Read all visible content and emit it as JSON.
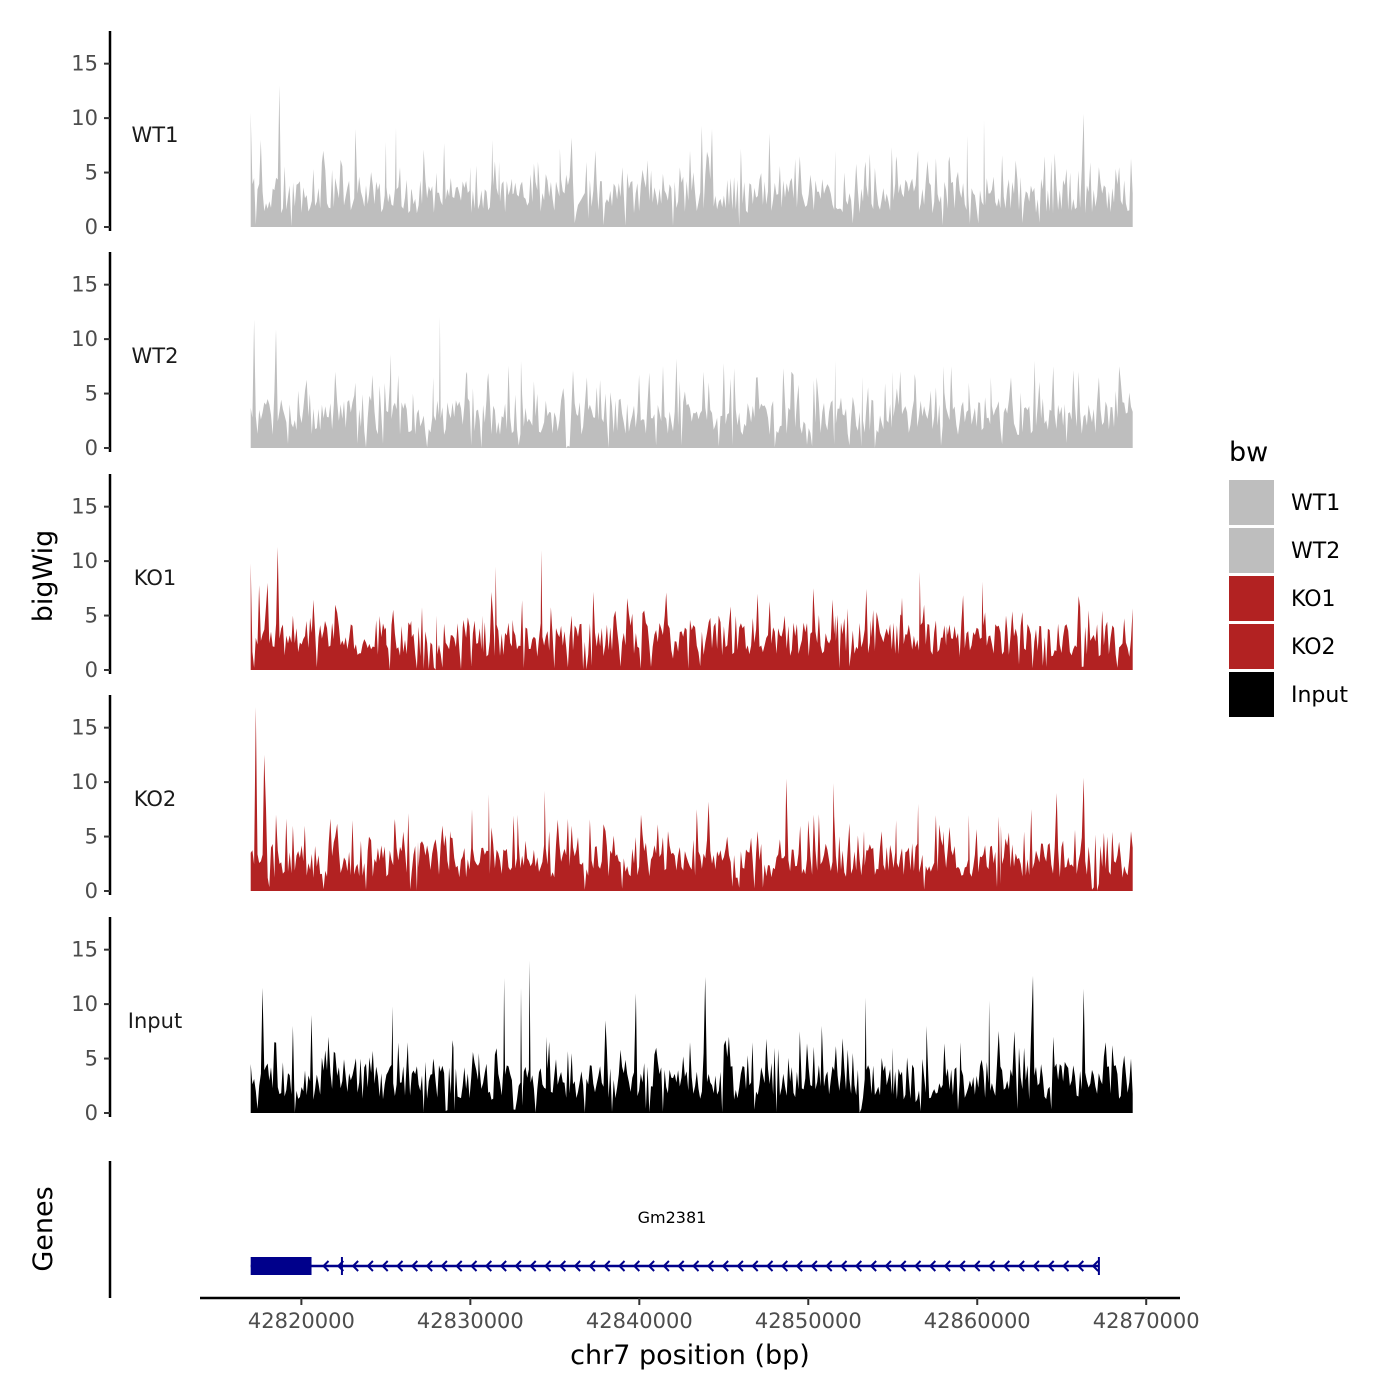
{
  "chart_data": {
    "type": "area",
    "x_axis": {
      "label": "chr7 position (bp)",
      "range": [
        42814000,
        42872000
      ],
      "ticks": [
        42820000,
        42830000,
        42840000,
        42850000,
        42860000,
        42870000
      ],
      "tick_labels": [
        "42820000",
        "42830000",
        "42840000",
        "42850000",
        "42860000",
        "42870000"
      ]
    },
    "y_axis": {
      "label": "bigWig",
      "range": [
        0,
        18
      ],
      "ticks": [
        0,
        5,
        10,
        15
      ],
      "tick_labels": [
        "0",
        "5",
        "10",
        "15"
      ]
    },
    "data_range": [
      42817000,
      42869200
    ],
    "series": [
      {
        "name": "WT1",
        "color": "#bebebe",
        "peaks": [
          [
            42817000,
            10.5
          ],
          [
            42817200,
            4.5
          ],
          [
            42817600,
            8.0
          ],
          [
            42818700,
            13.0
          ],
          [
            42819300,
            3.8
          ],
          [
            42820100,
            3.5
          ],
          [
            42821300,
            7.0
          ],
          [
            42822000,
            4.5
          ],
          [
            42823200,
            9.0
          ],
          [
            42824000,
            3.0
          ],
          [
            42825000,
            7.8
          ],
          [
            42825600,
            9.1
          ],
          [
            42826500,
            3.5
          ],
          [
            42828000,
            5.0
          ],
          [
            42830000,
            5.5
          ],
          [
            42831300,
            8.0
          ],
          [
            42831700,
            6.0
          ],
          [
            42832500,
            3.0
          ],
          [
            42834000,
            6.0
          ],
          [
            42835300,
            7.2
          ],
          [
            42836000,
            8.2
          ],
          [
            42837400,
            7.0
          ],
          [
            42839000,
            5.5
          ],
          [
            42840700,
            5.2
          ],
          [
            42843000,
            7.0
          ],
          [
            42843700,
            9.3
          ],
          [
            42844300,
            9.0
          ],
          [
            42845400,
            4.5
          ],
          [
            42847700,
            8.6
          ],
          [
            42849500,
            6.5
          ],
          [
            42851600,
            7.0
          ],
          [
            42853400,
            6.0
          ],
          [
            42855200,
            6.5
          ],
          [
            42856500,
            7.0
          ],
          [
            42858300,
            6.0
          ],
          [
            42859400,
            8.4
          ],
          [
            42860400,
            9.8
          ],
          [
            42862300,
            5.0
          ],
          [
            42864000,
            6.5
          ],
          [
            42865500,
            5.0
          ],
          [
            42866300,
            10.4
          ],
          [
            42867200,
            5.5
          ],
          [
            42868400,
            5.5
          ],
          [
            42869100,
            6.3
          ]
        ]
      },
      {
        "name": "WT2",
        "color": "#bebebe",
        "peaks": [
          [
            42817200,
            11.8
          ],
          [
            42818000,
            4.5
          ],
          [
            42818500,
            10.9
          ],
          [
            42819300,
            4.0
          ],
          [
            42820500,
            5.0
          ],
          [
            42822000,
            7.0
          ],
          [
            42823200,
            6.0
          ],
          [
            42824200,
            6.7
          ],
          [
            42825300,
            8.6
          ],
          [
            42826600,
            5.0
          ],
          [
            42827800,
            6.5
          ],
          [
            42828200,
            12.1
          ],
          [
            42829800,
            7.0
          ],
          [
            42831000,
            6.0
          ],
          [
            42833000,
            8.0
          ],
          [
            42835500,
            5.5
          ],
          [
            42836900,
            6.5
          ],
          [
            42838000,
            5.0
          ],
          [
            42840000,
            6.0
          ],
          [
            42841400,
            7.5
          ],
          [
            42842200,
            8.2
          ],
          [
            42843800,
            7.0
          ],
          [
            42845000,
            7.8
          ],
          [
            42847000,
            6.5
          ],
          [
            42849000,
            7.0
          ],
          [
            42850500,
            6.5
          ],
          [
            42851600,
            8.0
          ],
          [
            42853200,
            6.5
          ],
          [
            42855000,
            7.0
          ],
          [
            42856300,
            6.8
          ],
          [
            42858000,
            7.5
          ],
          [
            42859500,
            6.0
          ],
          [
            42860800,
            6.5
          ],
          [
            42862000,
            6.5
          ],
          [
            42863400,
            8.0
          ],
          [
            42864500,
            7.5
          ],
          [
            42866000,
            7.0
          ],
          [
            42867200,
            6.5
          ],
          [
            42868400,
            7.5
          ],
          [
            42869100,
            3.5
          ]
        ]
      },
      {
        "name": "KO1",
        "color": "#b22222",
        "peaks": [
          [
            42817000,
            9.8
          ],
          [
            42817500,
            7.8
          ],
          [
            42818000,
            8.0
          ],
          [
            42818600,
            11.3
          ],
          [
            42819500,
            5.0
          ],
          [
            42820300,
            4.5
          ],
          [
            42821400,
            4.5
          ],
          [
            42822000,
            6.0
          ],
          [
            42825000,
            3.9
          ],
          [
            42826500,
            4.5
          ],
          [
            42828000,
            5.0
          ],
          [
            42829600,
            4.6
          ],
          [
            42830700,
            5.0
          ],
          [
            42831500,
            9.5
          ],
          [
            42832500,
            4.6
          ],
          [
            42834200,
            11.0
          ],
          [
            42836000,
            5.0
          ],
          [
            42837300,
            4.7
          ],
          [
            42839800,
            3.4
          ],
          [
            42841500,
            5.0
          ],
          [
            42843000,
            4.6
          ],
          [
            42844700,
            5.0
          ],
          [
            42847000,
            7.0
          ],
          [
            42848600,
            5.0
          ],
          [
            42850300,
            7.5
          ],
          [
            42851600,
            5.0
          ],
          [
            42853700,
            4.6
          ],
          [
            42855500,
            5.0
          ],
          [
            42856600,
            9.0
          ],
          [
            42858200,
            4.0
          ],
          [
            42860300,
            8.1
          ],
          [
            42861700,
            5.0
          ],
          [
            42864000,
            3.0
          ],
          [
            42866000,
            6.8
          ],
          [
            42868000,
            4.1
          ]
        ]
      },
      {
        "name": "KO2",
        "color": "#b22222",
        "peaks": [
          [
            42817000,
            3.5
          ],
          [
            42817300,
            16.9
          ],
          [
            42817800,
            12.5
          ],
          [
            42818500,
            7.0
          ],
          [
            42819500,
            6.0
          ],
          [
            42820200,
            6.0
          ],
          [
            42822000,
            5.0
          ],
          [
            42824000,
            5.0
          ],
          [
            42825500,
            6.0
          ],
          [
            42826900,
            4.5
          ],
          [
            42828800,
            5.5
          ],
          [
            42830100,
            7.5
          ],
          [
            42831100,
            8.9
          ],
          [
            42832800,
            7.0
          ],
          [
            42834400,
            9.2
          ],
          [
            42836000,
            6.0
          ],
          [
            42838000,
            5.5
          ],
          [
            42840100,
            7.0
          ],
          [
            42841700,
            5.5
          ],
          [
            42843400,
            7.5
          ],
          [
            42844100,
            8.2
          ],
          [
            42845200,
            5.0
          ],
          [
            42847000,
            5.5
          ],
          [
            42848700,
            10.3
          ],
          [
            42850000,
            6.5
          ],
          [
            42851500,
            9.9
          ],
          [
            42853300,
            5.5
          ],
          [
            42855200,
            6.5
          ],
          [
            42856500,
            8.0
          ],
          [
            42858000,
            5.5
          ],
          [
            42859500,
            7.0
          ],
          [
            42861400,
            6.0
          ],
          [
            42863200,
            7.5
          ],
          [
            42864700,
            9.0
          ],
          [
            42866300,
            10.4
          ],
          [
            42867700,
            5.0
          ],
          [
            42869100,
            5.5
          ]
        ]
      },
      {
        "name": "Input",
        "color": "#000000",
        "peaks": [
          [
            42817000,
            4.5
          ],
          [
            42817700,
            11.5
          ],
          [
            42818400,
            6.5
          ],
          [
            42819500,
            8.0
          ],
          [
            42820600,
            9.0
          ],
          [
            42821600,
            7.0
          ],
          [
            42822000,
            5.5
          ],
          [
            42823500,
            5.0
          ],
          [
            42825400,
            9.8
          ],
          [
            42826300,
            6.5
          ],
          [
            42827800,
            5.0
          ],
          [
            42829000,
            6.0
          ],
          [
            42830500,
            5.5
          ],
          [
            42832000,
            12.4
          ],
          [
            42833000,
            11.5
          ],
          [
            42833500,
            14.0
          ],
          [
            42834500,
            7.0
          ],
          [
            42836000,
            5.5
          ],
          [
            42838000,
            8.5
          ],
          [
            42839800,
            11.0
          ],
          [
            42841000,
            6.0
          ],
          [
            42843000,
            6.5
          ],
          [
            42843900,
            12.5
          ],
          [
            42845300,
            7.0
          ],
          [
            42846700,
            6.5
          ],
          [
            42848000,
            6.0
          ],
          [
            42849500,
            7.5
          ],
          [
            42850800,
            8.0
          ],
          [
            42853400,
            10.6
          ],
          [
            42855000,
            6.0
          ],
          [
            42857000,
            8.0
          ],
          [
            42859000,
            6.5
          ],
          [
            42860700,
            10.3
          ],
          [
            42862200,
            7.5
          ],
          [
            42863300,
            12.6
          ],
          [
            42864500,
            7.0
          ],
          [
            42866300,
            11.4
          ],
          [
            42867600,
            6.5
          ],
          [
            42869100,
            5.0
          ]
        ]
      }
    ],
    "legend": {
      "title": "bw",
      "position": "right",
      "entries": [
        {
          "label": "WT1",
          "color": "#bebebe"
        },
        {
          "label": "WT2",
          "color": "#bebebe"
        },
        {
          "label": "KO1",
          "color": "#b22222"
        },
        {
          "label": "KO2",
          "color": "#b22222"
        },
        {
          "label": "Input",
          "color": "#000000"
        }
      ]
    },
    "gene_track": {
      "title": "Genes",
      "gene_name": "Gm2381",
      "color": "#00008b",
      "strand": "-",
      "start": 42817000,
      "end": 42867200,
      "exons": [
        [
          42817000,
          42820600
        ]
      ],
      "tss_mark": 42822400
    }
  }
}
